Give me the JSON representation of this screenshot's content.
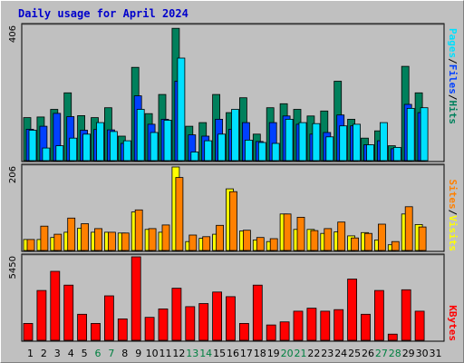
{
  "title": "Daily usage for April 2024",
  "colors": {
    "hits": "#00805c",
    "files": "#0040ff",
    "pages": "#00e0ff",
    "visits": "#ffff00",
    "sites": "#ff8000",
    "kbytes": "#ff0000",
    "weekday_label": "#000000",
    "weekend_label": "#008040"
  },
  "labels": {
    "pages": "Pages",
    "files": "Files",
    "hits": "Hits",
    "sites": "Sites",
    "visits": "Visits",
    "kbytes": "KBytes",
    "sep": "/"
  },
  "chart_data": {
    "type": "bar",
    "days": [
      "1",
      "2",
      "3",
      "4",
      "5",
      "6",
      "7",
      "8",
      "9",
      "10",
      "11",
      "12",
      "13",
      "14",
      "15",
      "16",
      "17",
      "18",
      "19",
      "20",
      "21",
      "22",
      "23",
      "24",
      "25",
      "26",
      "27",
      "28",
      "29",
      "30",
      "31"
    ],
    "weekend_days": [
      "6",
      "7",
      "13",
      "14",
      "20",
      "21",
      "27",
      "28"
    ],
    "panels": [
      {
        "name": "hits-files-pages",
        "ymax": 406,
        "ymax_label": "406",
        "series": [
          {
            "name": "Hits",
            "values": [
              130,
              132,
              155,
              205,
              136,
              130,
              160,
              74,
              282,
              142,
              200,
              400,
              104,
              115,
              200,
              145,
              190,
              80,
              160,
              172,
              155,
              135,
              150,
              240,
              125,
              68,
              90,
              45,
              285,
              205,
              0
            ]
          },
          {
            "name": "Files",
            "values": [
              95,
              104,
              143,
              133,
              92,
              94,
              93,
              52,
              196,
              110,
              125,
              240,
              78,
              74,
              125,
              95,
              115,
              58,
              115,
              135,
              110,
              80,
              85,
              138,
              105,
              48,
              60,
              36,
              170,
              145,
              0
            ]
          },
          {
            "name": "Pages",
            "values": [
              92,
              38,
              45,
              68,
              80,
              115,
              88,
              60,
              155,
              85,
              122,
              310,
              26,
              60,
              80,
              155,
              62,
              55,
              52,
              125,
              115,
              112,
              72,
              105,
              110,
              48,
              115,
              40,
              158,
              160,
              0
            ]
          }
        ]
      },
      {
        "name": "visits-sites",
        "ymax": 206,
        "ymax_label": "206",
        "series": [
          {
            "name": "Visits",
            "values": [
              27,
              27,
              32,
              45,
              55,
              45,
              45,
              43,
              95,
              52,
              45,
              206,
              22,
              30,
              40,
              152,
              48,
              26,
              22,
              90,
              52,
              52,
              42,
              46,
              36,
              44,
              26,
              14,
              90,
              64,
              0
            ]
          },
          {
            "name": "Sites",
            "values": [
              27,
              60,
              40,
              80,
              66,
              54,
              45,
              43,
              100,
              54,
              63,
              180,
              38,
              34,
              62,
              145,
              50,
              32,
              29,
              90,
              82,
              49,
              54,
              70,
              31,
              42,
              65,
              22,
              108,
              58,
              0
            ]
          }
        ]
      },
      {
        "name": "kbytes",
        "ymax": 5450,
        "ymax_label": "5450",
        "series": [
          {
            "name": "KBytes",
            "values": [
              1100,
              3250,
              4500,
              3600,
              1700,
              1100,
              2900,
              1400,
              5450,
              1500,
              2050,
              3400,
              2200,
              2400,
              3150,
              2850,
              1100,
              3600,
              1000,
              1200,
              1900,
              2100,
              1900,
              2000,
              4000,
              1700,
              3250,
              400,
              3300,
              1900,
              0
            ]
          }
        ]
      }
    ]
  }
}
